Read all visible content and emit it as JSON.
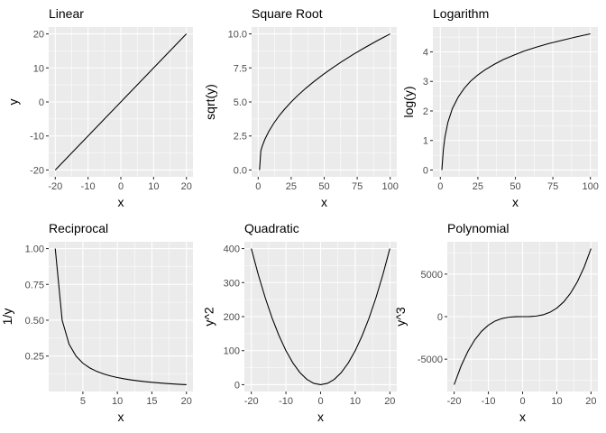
{
  "chart_data": [
    {
      "type": "line",
      "title": "Linear",
      "xlabel": "x",
      "ylabel": "y",
      "xlim": [
        -22,
        22
      ],
      "ylim": [
        -22,
        22
      ],
      "xticks": [
        -20,
        -10,
        0,
        10,
        20
      ],
      "yticks": [
        -20,
        -10,
        0,
        10,
        20
      ],
      "xtick_labels": [
        "-20",
        "-10",
        "0",
        "10",
        "20"
      ],
      "ytick_labels": [
        "-20",
        "-10",
        "0",
        "10",
        "20"
      ],
      "grid": true,
      "series": [
        {
          "x": [
            -20,
            -15,
            -10,
            -5,
            0,
            5,
            10,
            15,
            20
          ],
          "y": [
            -20,
            -15,
            -10,
            -5,
            0,
            5,
            10,
            15,
            20
          ]
        }
      ]
    },
    {
      "type": "line",
      "title": "Square Root",
      "xlabel": "x",
      "ylabel": "sqrt(y)",
      "xlim": [
        -5,
        105
      ],
      "ylim": [
        -0.5,
        10.5
      ],
      "xticks": [
        0,
        25,
        50,
        75,
        100
      ],
      "yticks": [
        0,
        2.5,
        5,
        7.5,
        10
      ],
      "xtick_labels": [
        "0",
        "25",
        "50",
        "75",
        "100"
      ],
      "ytick_labels": [
        "0.0",
        "2.5",
        "5.0",
        "7.5",
        "10.0"
      ],
      "grid": true,
      "series": [
        {
          "x": [
            1,
            2,
            3,
            5,
            8,
            12,
            16,
            20,
            25,
            30,
            36,
            42,
            49,
            56,
            64,
            72,
            81,
            90,
            100
          ],
          "y": [
            0,
            1.41,
            1.73,
            2.24,
            2.83,
            3.46,
            4,
            4.47,
            5,
            5.48,
            6,
            6.48,
            7,
            7.48,
            8,
            8.49,
            9,
            9.49,
            10
          ]
        }
      ]
    },
    {
      "type": "line",
      "title": "Logarithm",
      "xlabel": "x",
      "ylabel": "log(y)",
      "xlim": [
        -5,
        105
      ],
      "ylim": [
        -0.23,
        4.84
      ],
      "xticks": [
        0,
        25,
        50,
        75,
        100
      ],
      "yticks": [
        0,
        1,
        2,
        3,
        4
      ],
      "xtick_labels": [
        "0",
        "25",
        "50",
        "75",
        "100"
      ],
      "ytick_labels": [
        "0",
        "1",
        "2",
        "3",
        "4"
      ],
      "grid": true,
      "series": [
        {
          "x": [
            1,
            2,
            3,
            5,
            8,
            12,
            16,
            20,
            25,
            30,
            36,
            42,
            49,
            56,
            64,
            72,
            81,
            90,
            100
          ],
          "y": [
            0,
            0.69,
            1.1,
            1.61,
            2.08,
            2.48,
            2.77,
            3,
            3.22,
            3.4,
            3.58,
            3.74,
            3.89,
            4.03,
            4.16,
            4.28,
            4.39,
            4.5,
            4.61
          ]
        }
      ]
    },
    {
      "type": "line",
      "title": "Reciprocal",
      "xlabel": "x",
      "ylabel": "1/y",
      "xlim": [
        0.05,
        20.95
      ],
      "ylim": [
        0.0025,
        1.0475
      ],
      "xticks": [
        5,
        10,
        15,
        20
      ],
      "yticks": [
        0.25,
        0.5,
        0.75,
        1
      ],
      "xtick_labels": [
        "5",
        "10",
        "15",
        "20"
      ],
      "ytick_labels": [
        "0.25",
        "0.50",
        "0.75",
        "1.00"
      ],
      "grid": true,
      "series": [
        {
          "x": [
            1,
            2,
            3,
            4,
            5,
            6,
            7,
            8,
            9,
            10,
            11,
            12,
            13,
            14,
            15,
            16,
            17,
            18,
            19,
            20
          ],
          "y": [
            1,
            0.5,
            0.333,
            0.25,
            0.2,
            0.167,
            0.143,
            0.125,
            0.111,
            0.1,
            0.0909,
            0.0833,
            0.0769,
            0.0714,
            0.0667,
            0.0625,
            0.0588,
            0.0556,
            0.0526,
            0.05
          ]
        }
      ]
    },
    {
      "type": "line",
      "title": "Quadratic",
      "xlabel": "x",
      "ylabel": "y^2",
      "xlim": [
        -22,
        22
      ],
      "ylim": [
        -20,
        420
      ],
      "xticks": [
        -20,
        -10,
        0,
        10,
        20
      ],
      "yticks": [
        0,
        100,
        200,
        300,
        400
      ],
      "xtick_labels": [
        "-20",
        "-10",
        "0",
        "10",
        "20"
      ],
      "ytick_labels": [
        "0",
        "100",
        "200",
        "300",
        "400"
      ],
      "grid": true,
      "series": [
        {
          "x": [
            -20,
            -18,
            -16,
            -14,
            -12,
            -10,
            -8,
            -6,
            -4,
            -2,
            0,
            2,
            4,
            6,
            8,
            10,
            12,
            14,
            16,
            18,
            20
          ],
          "y": [
            400,
            324,
            256,
            196,
            144,
            100,
            64,
            36,
            16,
            4,
            0,
            4,
            16,
            36,
            64,
            100,
            144,
            196,
            256,
            324,
            400
          ]
        }
      ]
    },
    {
      "type": "line",
      "title": "Polynomial",
      "xlabel": "x",
      "ylabel": "y^3",
      "xlim": [
        -22,
        22
      ],
      "ylim": [
        -8800,
        8800
      ],
      "xticks": [
        -20,
        -10,
        0,
        10,
        20
      ],
      "yticks": [
        -5000,
        0,
        5000
      ],
      "xtick_labels": [
        "-20",
        "-10",
        "0",
        "10",
        "20"
      ],
      "ytick_labels": [
        "-5000",
        "0",
        "5000"
      ],
      "grid": true,
      "series": [
        {
          "x": [
            -20,
            -18,
            -16,
            -14,
            -12,
            -10,
            -8,
            -6,
            -4,
            -2,
            0,
            2,
            4,
            6,
            8,
            10,
            12,
            14,
            16,
            18,
            20
          ],
          "y": [
            -8000,
            -5832,
            -4096,
            -2744,
            -1728,
            -1000,
            -512,
            -216,
            -64,
            -8,
            0,
            8,
            64,
            216,
            512,
            1000,
            1728,
            2744,
            4096,
            5832,
            8000
          ]
        }
      ]
    }
  ]
}
